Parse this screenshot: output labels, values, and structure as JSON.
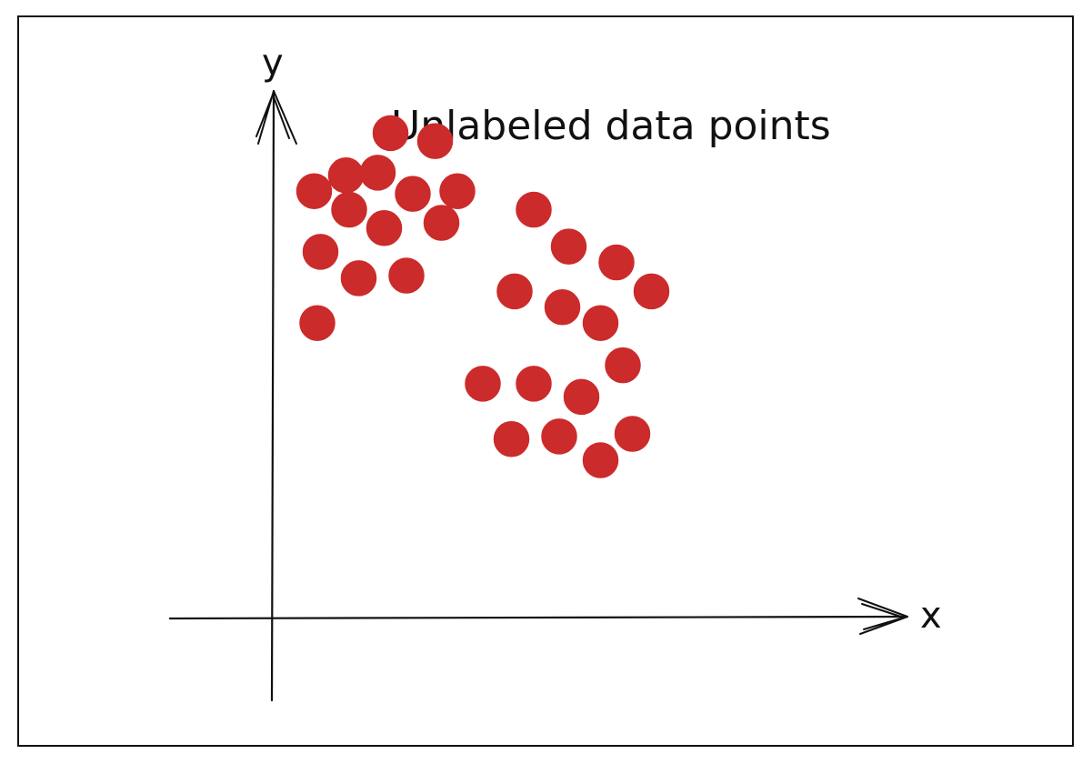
{
  "chart_data": {
    "type": "scatter",
    "title": "Unlabeled data points",
    "xlabel": "x",
    "ylabel": "y",
    "xlim": [
      0,
      100
    ],
    "ylim": [
      0,
      100
    ],
    "grid": false,
    "legend": "none",
    "marker_color": "#cc2b2b",
    "series": [
      {
        "points": [
          [
            18.5,
            92.0
          ],
          [
            25.5,
            90.5
          ],
          [
            11.5,
            84.0
          ],
          [
            16.5,
            84.5
          ],
          [
            22.0,
            80.5
          ],
          [
            29.0,
            81.0
          ],
          [
            6.5,
            81.0
          ],
          [
            12.0,
            77.5
          ],
          [
            17.5,
            74.0
          ],
          [
            26.5,
            75.0
          ],
          [
            7.5,
            69.5
          ],
          [
            13.5,
            64.5
          ],
          [
            21.0,
            65.0
          ],
          [
            7.0,
            56.0
          ]
        ]
      },
      {
        "points": [
          [
            41.0,
            77.5
          ],
          [
            46.5,
            70.5
          ],
          [
            54.0,
            67.5
          ],
          [
            38.0,
            62.0
          ],
          [
            45.5,
            59.0
          ],
          [
            51.5,
            56.0
          ],
          [
            59.5,
            62.0
          ],
          [
            33.0,
            44.5
          ],
          [
            41.0,
            44.5
          ],
          [
            48.5,
            42.0
          ],
          [
            55.0,
            48.0
          ],
          [
            37.5,
            34.0
          ],
          [
            45.0,
            34.5
          ],
          [
            51.5,
            30.0
          ],
          [
            56.5,
            35.0
          ]
        ]
      }
    ]
  }
}
